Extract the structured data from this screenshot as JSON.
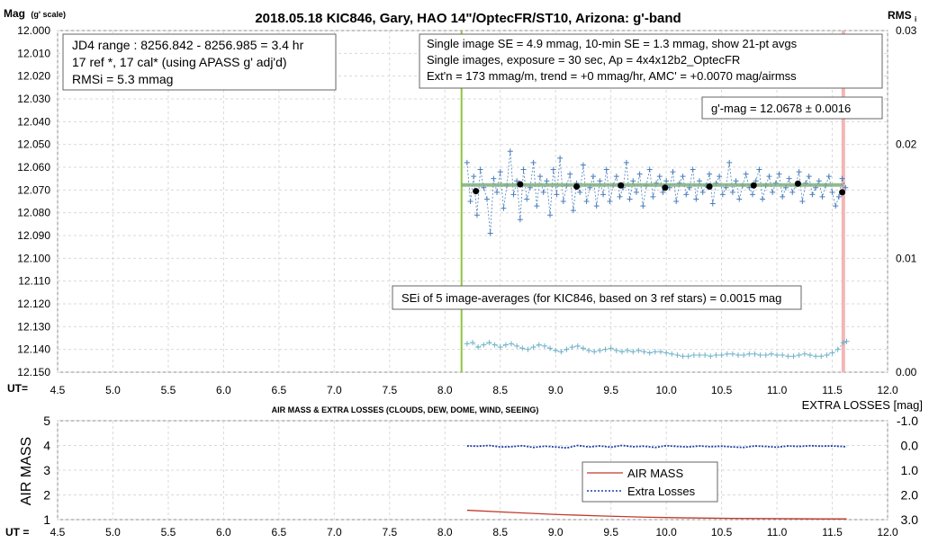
{
  "chart_data": [
    {
      "type": "scatter",
      "title": "2018.05.18  KIC846,  Gary, HAO 14\"/OptecFR/ST10,  Arizona:  g'-band",
      "ylabel": "Mag",
      "ylabel_sub": "(g' scale)",
      "y2label": "RMS",
      "y2label_sub": "i",
      "xlabel": "UT=",
      "xlim": [
        4.5,
        12.0
      ],
      "ylim": [
        12.0,
        12.15
      ],
      "y_inverted": true,
      "y2lim": [
        0.0,
        0.03
      ],
      "grid": true,
      "x_ticks": [
        "4.5",
        "5.0",
        "5.5",
        "6.0",
        "6.5",
        "7.0",
        "7.5",
        "8.0",
        "8.5",
        "9.0",
        "9.5",
        "10.0",
        "10.5",
        "11.0",
        "11.5",
        "12.0"
      ],
      "y_ticks": [
        "12.000",
        "12.010",
        "12.020",
        "12.030",
        "12.040",
        "12.050",
        "12.060",
        "12.070",
        "12.080",
        "12.090",
        "12.100",
        "12.110",
        "12.120",
        "12.130",
        "12.140",
        "12.150"
      ],
      "y2_ticks": [
        "0.03",
        "0.02",
        "0.01",
        "0.00"
      ],
      "vline_green_x": 8.15,
      "vline_pink_x": 11.6,
      "fit_line": {
        "x": [
          8.15,
          11.6
        ],
        "y": [
          12.0678,
          12.0678
        ]
      },
      "series": [
        {
          "role": "single_images",
          "color": "#4a7ebb",
          "x": [
            8.2,
            8.23,
            8.26,
            8.29,
            8.32,
            8.35,
            8.38,
            8.41,
            8.44,
            8.47,
            8.5,
            8.53,
            8.56,
            8.59,
            8.62,
            8.65,
            8.68,
            8.71,
            8.74,
            8.77,
            8.8,
            8.83,
            8.86,
            8.89,
            8.92,
            8.95,
            8.98,
            9.01,
            9.04,
            9.07,
            9.1,
            9.13,
            9.16,
            9.19,
            9.22,
            9.25,
            9.28,
            9.31,
            9.34,
            9.37,
            9.4,
            9.43,
            9.46,
            9.49,
            9.52,
            9.55,
            9.58,
            9.61,
            9.64,
            9.67,
            9.7,
            9.73,
            9.76,
            9.79,
            9.82,
            9.85,
            9.88,
            9.91,
            9.94,
            9.97,
            10.0,
            10.03,
            10.06,
            10.09,
            10.12,
            10.15,
            10.18,
            10.21,
            10.24,
            10.27,
            10.3,
            10.33,
            10.36,
            10.39,
            10.42,
            10.45,
            10.48,
            10.51,
            10.54,
            10.57,
            10.6,
            10.63,
            10.66,
            10.69,
            10.72,
            10.75,
            10.78,
            10.81,
            10.84,
            10.87,
            10.9,
            10.93,
            10.96,
            10.99,
            11.02,
            11.05,
            11.08,
            11.11,
            11.14,
            11.17,
            11.2,
            11.23,
            11.26,
            11.29,
            11.32,
            11.35,
            11.38,
            11.41,
            11.44,
            11.47,
            11.5,
            11.53,
            11.56,
            11.59,
            11.62
          ],
          "y": [
            12.058,
            12.075,
            12.064,
            12.081,
            12.061,
            12.069,
            12.074,
            12.089,
            12.065,
            12.071,
            12.062,
            12.078,
            12.068,
            12.053,
            12.072,
            12.066,
            12.083,
            12.061,
            12.074,
            12.069,
            12.058,
            12.077,
            12.064,
            12.071,
            12.066,
            12.081,
            12.061,
            12.072,
            12.056,
            12.075,
            12.068,
            12.063,
            12.079,
            12.067,
            12.071,
            12.059,
            12.075,
            12.069,
            12.064,
            12.077,
            12.066,
            12.072,
            12.061,
            12.075,
            12.068,
            12.064,
            12.073,
            12.069,
            12.058,
            12.074,
            12.066,
            12.071,
            12.063,
            12.077,
            12.068,
            12.061,
            12.073,
            12.067,
            12.064,
            12.071,
            12.066,
            12.069,
            12.062,
            12.075,
            12.067,
            12.064,
            12.072,
            12.069,
            12.061,
            12.074,
            12.066,
            12.071,
            12.068,
            12.063,
            12.076,
            12.067,
            12.064,
            12.072,
            12.069,
            12.058,
            12.071,
            12.066,
            12.074,
            12.068,
            12.063,
            12.069,
            12.072,
            12.066,
            12.061,
            12.074,
            12.068,
            12.064,
            12.071,
            12.067,
            12.063,
            12.073,
            12.069,
            12.065,
            12.071,
            12.068,
            12.062,
            12.075,
            12.067,
            12.064,
            12.072,
            12.069,
            12.066,
            12.073,
            12.068,
            12.064,
            12.071,
            12.077,
            12.073,
            12.065,
            12.069
          ]
        },
        {
          "role": "21pt_averages",
          "color": "#000000",
          "x": [
            8.28,
            8.68,
            9.19,
            9.59,
            9.99,
            10.39,
            10.79,
            11.19,
            11.59
          ],
          "y": [
            12.0705,
            12.0675,
            12.0685,
            12.068,
            12.069,
            12.0685,
            12.068,
            12.0672,
            12.071
          ]
        },
        {
          "role": "RMSi",
          "axis": "y2",
          "color": "#6fb3c9",
          "x": [
            8.2,
            8.25,
            8.3,
            8.35,
            8.4,
            8.45,
            8.5,
            8.55,
            8.6,
            8.65,
            8.7,
            8.75,
            8.8,
            8.85,
            8.9,
            8.95,
            9.0,
            9.05,
            9.1,
            9.15,
            9.2,
            9.25,
            9.3,
            9.35,
            9.4,
            9.45,
            9.5,
            9.55,
            9.6,
            9.65,
            9.7,
            9.75,
            9.8,
            9.85,
            9.9,
            9.95,
            10.0,
            10.05,
            10.1,
            10.15,
            10.2,
            10.25,
            10.3,
            10.35,
            10.4,
            10.45,
            10.5,
            10.55,
            10.6,
            10.65,
            10.7,
            10.75,
            10.8,
            10.85,
            10.9,
            10.95,
            11.0,
            11.05,
            11.1,
            11.15,
            11.2,
            11.25,
            11.3,
            11.35,
            11.4,
            11.45,
            11.5,
            11.55,
            11.6,
            11.63
          ],
          "y": [
            0.0025,
            0.0026,
            0.0022,
            0.0024,
            0.0026,
            0.0024,
            0.0022,
            0.0024,
            0.0025,
            0.0023,
            0.0021,
            0.002,
            0.0022,
            0.0024,
            0.0023,
            0.0021,
            0.0019,
            0.0018,
            0.002,
            0.0022,
            0.0023,
            0.0021,
            0.0019,
            0.0018,
            0.0019,
            0.002,
            0.0021,
            0.0019,
            0.0018,
            0.0019,
            0.0018,
            0.0019,
            0.0018,
            0.0017,
            0.0018,
            0.0018,
            0.0017,
            0.0016,
            0.0015,
            0.0014,
            0.0014,
            0.0015,
            0.0015,
            0.0015,
            0.0014,
            0.0015,
            0.0015,
            0.0016,
            0.0016,
            0.0015,
            0.0015,
            0.0016,
            0.0016,
            0.0015,
            0.0015,
            0.0016,
            0.0015,
            0.0015,
            0.0014,
            0.0014,
            0.0015,
            0.0016,
            0.0015,
            0.0014,
            0.0014,
            0.0015,
            0.0017,
            0.002,
            0.0026,
            0.0027
          ]
        }
      ],
      "annotations": {
        "jd_box": [
          "JD4 range : 8256.842 - 8256.985 =  3.4  hr",
          "17 ref *, 17 cal* (using APASS g' adj'd)",
          "RMSi = 5.3 mmag"
        ],
        "stats_box": [
          "Single image SE = 4.9 mmag, 10-min SE = 1.3 mmag, show  21-pt avgs",
          "Single images, exposure = 30 sec, Ap = 4x4x12b2_OptecFR",
          "Ext'n = 173 mmag/m, trend =  +0 mmag/hr, AMC' = +0.0070 mag/airmss"
        ],
        "gmag_box": "g'-mag = 12.0678 ± 0.0016",
        "sei_box": "SEi of 5 image-averages (for KIC846, based on 3 ref stars) = 0.0015  mag"
      }
    },
    {
      "type": "line",
      "title": "AIR MASS & EXTRA LOSSES (CLOUDS, DEW, DOME, WIND, SEEING)",
      "ylabel": "AIR MASS",
      "y2label": "EXTRA LOSSES [mag]",
      "xlabel": "UT =",
      "xlim": [
        4.5,
        12.0
      ],
      "ylim": [
        1,
        5
      ],
      "y2lim": [
        -1.0,
        3.0
      ],
      "y2_inverted": true,
      "grid": true,
      "x_ticks": [
        "4.5",
        "5.0",
        "5.5",
        "6.0",
        "6.5",
        "7.0",
        "7.5",
        "8.0",
        "8.5",
        "9.0",
        "9.5",
        "10.0",
        "10.5",
        "11.0",
        "11.5",
        "12.0"
      ],
      "y_ticks": [
        "5",
        "4",
        "3",
        "2",
        "1"
      ],
      "y2_ticks": [
        "-1.0",
        "0.0",
        "1.0",
        "2.0",
        "3.0"
      ],
      "legend_position": "lower-right",
      "series": [
        {
          "name": "AIR MASS",
          "color": "#c0392b",
          "x": [
            8.2,
            8.6,
            9.0,
            9.4,
            9.8,
            10.2,
            10.6,
            11.0,
            11.4,
            11.63
          ],
          "y": [
            1.38,
            1.29,
            1.21,
            1.15,
            1.1,
            1.07,
            1.05,
            1.04,
            1.03,
            1.03
          ]
        },
        {
          "name": "Extra Losses",
          "color": "#1f3fa8",
          "x": [
            8.2,
            8.3,
            8.4,
            8.5,
            8.6,
            8.7,
            8.8,
            8.9,
            9.0,
            9.1,
            9.2,
            9.3,
            9.4,
            9.5,
            9.6,
            9.7,
            9.8,
            9.9,
            10.0,
            10.1,
            10.2,
            10.3,
            10.4,
            10.5,
            10.6,
            10.7,
            10.8,
            10.9,
            11.0,
            11.1,
            11.2,
            11.3,
            11.4,
            11.5,
            11.63
          ],
          "y": [
            0.02,
            0.03,
            0.0,
            0.06,
            0.05,
            0.01,
            0.08,
            0.03,
            0.06,
            0.1,
            0.0,
            0.06,
            0.02,
            0.07,
            0.0,
            0.05,
            0.03,
            0.08,
            0.01,
            0.04,
            0.06,
            0.02,
            0.05,
            0.03,
            0.06,
            0.08,
            0.02,
            0.04,
            0.07,
            0.02,
            0.04,
            0.01,
            0.03,
            0.02,
            0.05
          ]
        }
      ]
    }
  ],
  "legend": {
    "airmass_label": "AIR MASS",
    "losses_label": "Extra Losses"
  }
}
